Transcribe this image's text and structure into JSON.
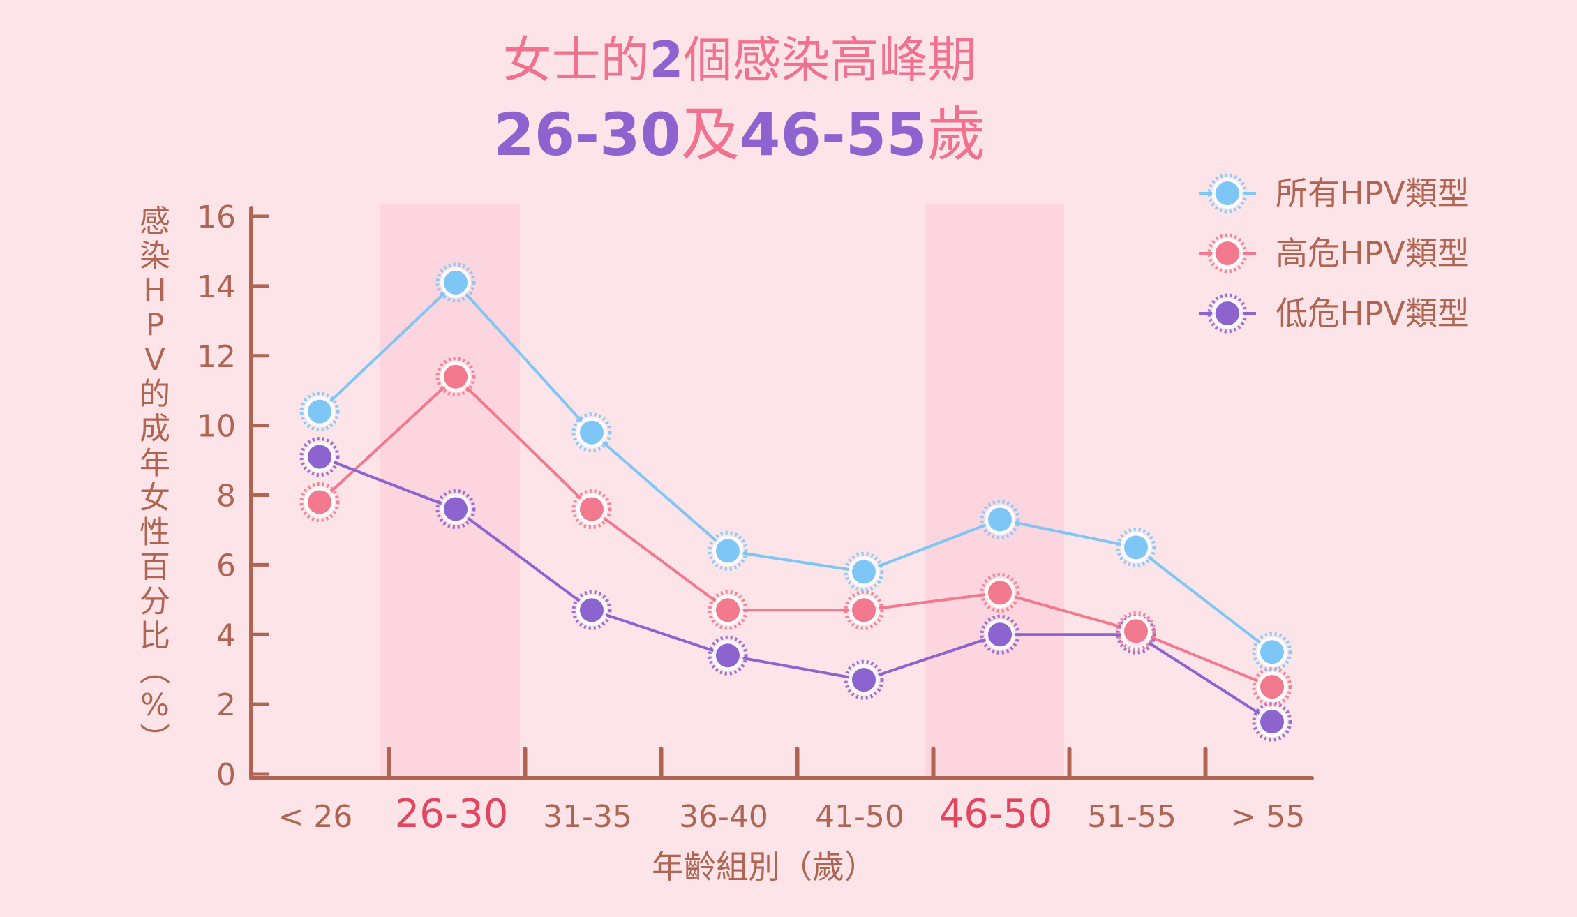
{
  "title": {
    "line1": [
      {
        "text": "女士的",
        "color": "#f0728f"
      },
      {
        "text": "2",
        "color": "#8e63cf",
        "bold": true
      },
      {
        "text": "個感染高峰期",
        "color": "#f0728f"
      }
    ],
    "line2": [
      {
        "text": "26-30",
        "color": "#8e63cf",
        "bold": true
      },
      {
        "text": "及",
        "color": "#f0728f"
      },
      {
        "text": "46-55",
        "color": "#8e63cf",
        "bold": true
      },
      {
        "text": "歲",
        "color": "#f0728f"
      }
    ]
  },
  "colors": {
    "background": "#fde4e8",
    "axis": "#b06452",
    "highlight_band": "#fdd5de",
    "highlight_label": "#e2475f"
  },
  "chart_data": {
    "type": "line",
    "categories": [
      "< 26",
      "26-30",
      "31-35",
      "36-40",
      "41-50",
      "46-50",
      "51-55",
      "> 55"
    ],
    "highlighted_categories": [
      "26-30",
      "46-50"
    ],
    "series": [
      {
        "name": "所有HPV類型",
        "color": "#7ec6f5",
        "values": [
          10.4,
          14.1,
          9.8,
          6.4,
          5.8,
          7.3,
          6.5,
          3.5
        ]
      },
      {
        "name": "高危HPV類型",
        "color": "#f37a8e",
        "values": [
          7.8,
          11.4,
          7.6,
          4.7,
          4.7,
          5.2,
          4.1,
          2.5
        ]
      },
      {
        "name": "低危HPV類型",
        "color": "#8d63cf",
        "values": [
          9.1,
          7.6,
          4.7,
          3.4,
          2.7,
          4.0,
          4.0,
          1.5
        ]
      }
    ],
    "yticks": [
      0,
      2,
      4,
      6,
      8,
      10,
      12,
      14,
      16
    ],
    "ylim": [
      0,
      16
    ],
    "ylabel": "感染HPV的成年女性百分比（%）",
    "xlabel": "年齡組別（歲）",
    "legend_position": "top-right",
    "grid": false
  }
}
